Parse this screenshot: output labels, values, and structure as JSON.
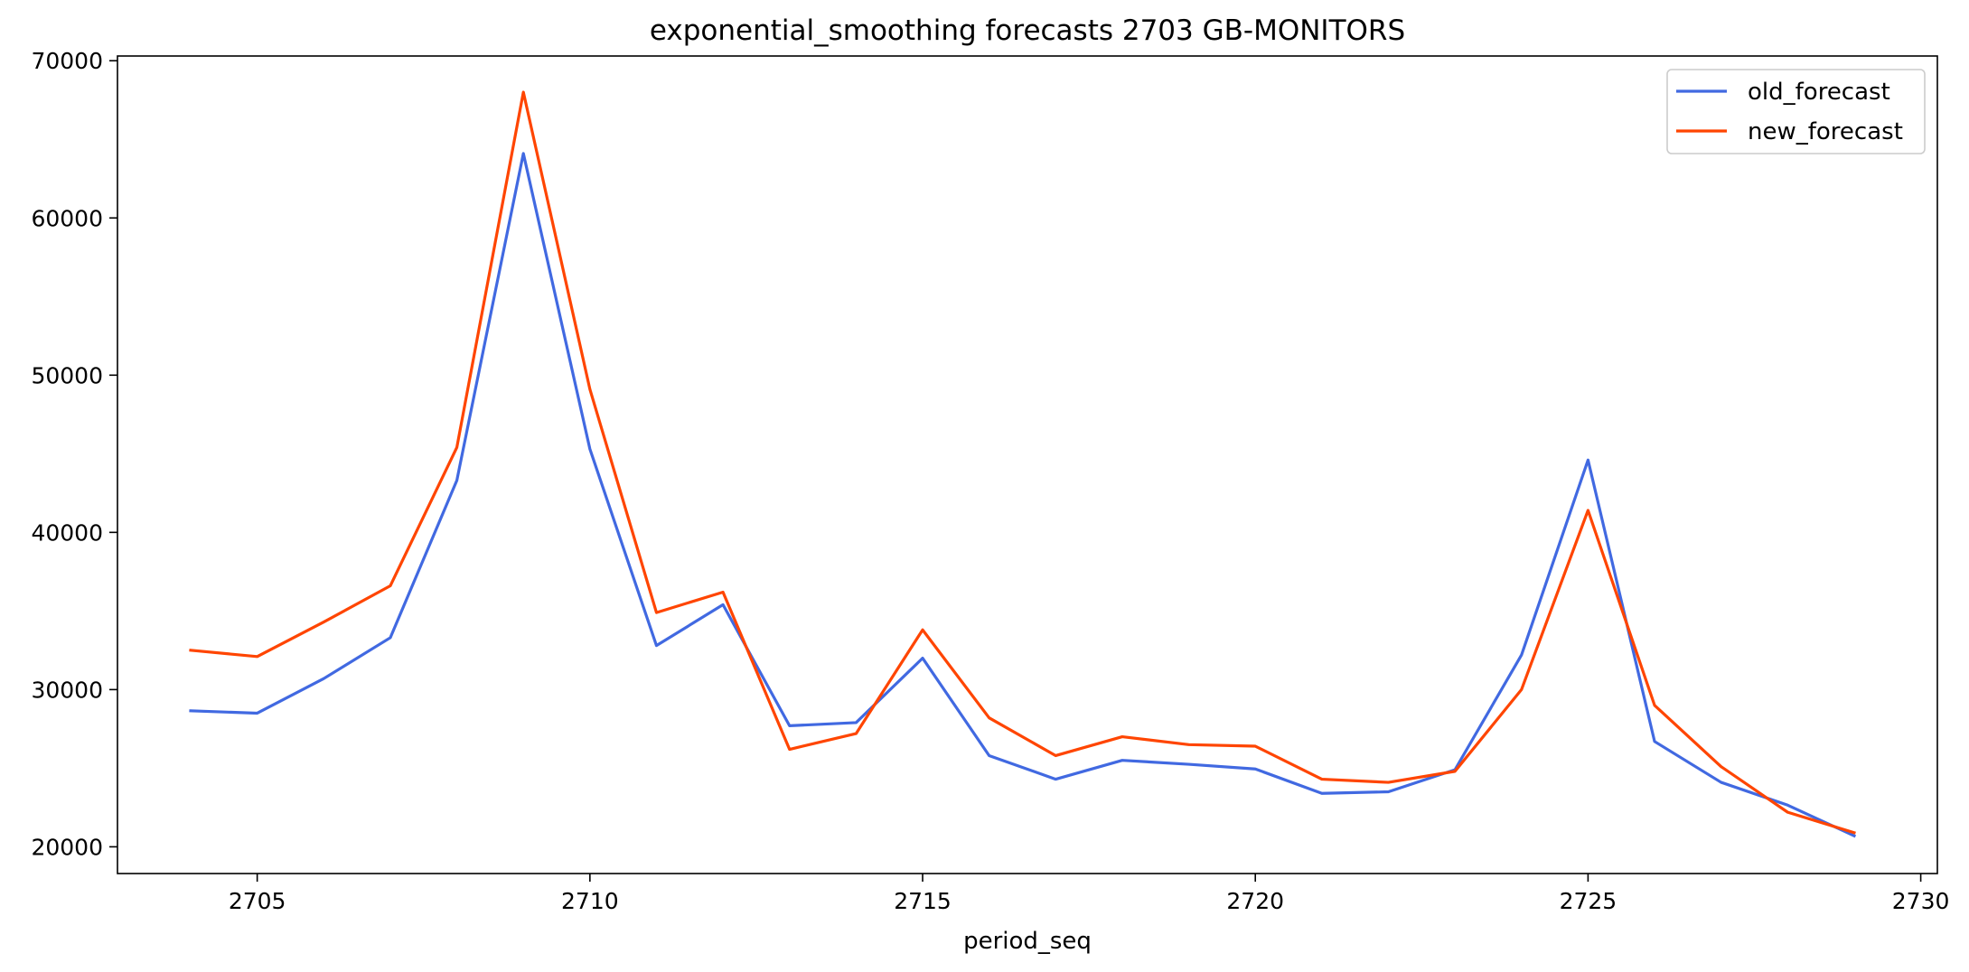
{
  "chart_data": {
    "type": "line",
    "title": "exponential_smoothing forecasts 2703 GB-MONITORS",
    "xlabel": "period_seq",
    "ylabel": "",
    "xlim": [
      2702.9,
      2730.25
    ],
    "ylim": [
      18300,
      70300
    ],
    "xticks": [
      2705,
      2710,
      2715,
      2720,
      2725,
      2730
    ],
    "yticks": [
      20000,
      30000,
      40000,
      50000,
      60000,
      70000
    ],
    "grid": false,
    "legend_position": "upper right",
    "x": [
      2704,
      2705,
      2706,
      2707,
      2708,
      2709,
      2710,
      2711,
      2712,
      2713,
      2714,
      2715,
      2716,
      2717,
      2718,
      2719,
      2720,
      2721,
      2722,
      2723,
      2724,
      2725,
      2726,
      2727,
      2728,
      2729
    ],
    "series": [
      {
        "name": "old_forecast",
        "color": "#4169e1",
        "values": [
          28650,
          28500,
          30700,
          33300,
          43300,
          64100,
          45300,
          32800,
          35400,
          27700,
          27900,
          32000,
          25800,
          24300,
          25500,
          25250,
          24950,
          23400,
          23500,
          24900,
          32200,
          44600,
          26700,
          24100,
          22650,
          20700
        ]
      },
      {
        "name": "new_forecast",
        "color": "#ff4500",
        "values": [
          32500,
          32100,
          34300,
          36600,
          45400,
          68000,
          49100,
          34900,
          36200,
          26200,
          27200,
          33800,
          28200,
          25800,
          27000,
          26500,
          26400,
          24300,
          24100,
          24800,
          30000,
          41400,
          29000,
          25100,
          22200,
          20900
        ]
      }
    ]
  }
}
